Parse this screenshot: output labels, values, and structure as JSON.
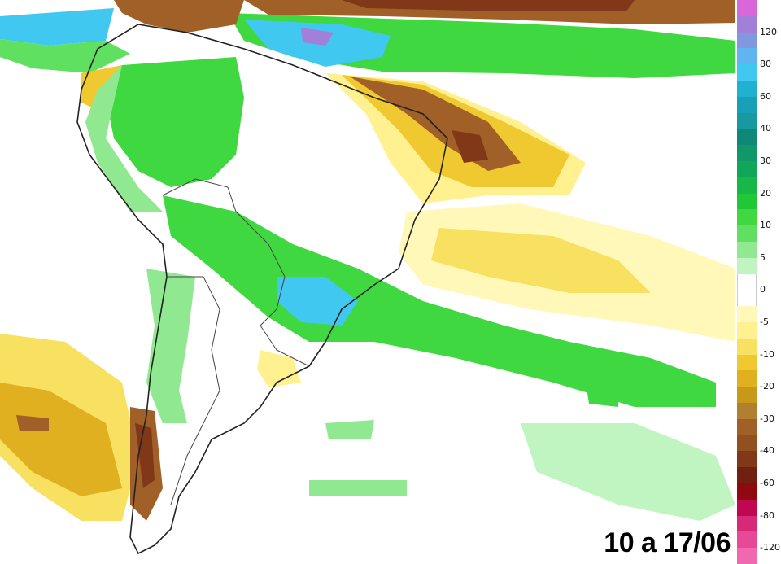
{
  "period_label": "10 a 17/06",
  "legend": {
    "items": [
      {
        "label": "",
        "color": "#d868d8"
      },
      {
        "label": "120",
        "color": "#a080d8"
      },
      {
        "label": "",
        "color": "#8098e0"
      },
      {
        "label": "80",
        "color": "#60b4f0"
      },
      {
        "label": "",
        "color": "#40c8f0"
      },
      {
        "label": "60",
        "color": "#20b0d0"
      },
      {
        "label": "",
        "color": "#18a0b8"
      },
      {
        "label": "40",
        "color": "#1898a0"
      },
      {
        "label": "",
        "color": "#108878"
      },
      {
        "label": "30",
        "color": "#109868"
      },
      {
        "label": "",
        "color": "#10a858"
      },
      {
        "label": "20",
        "color": "#18b848"
      },
      {
        "label": "",
        "color": "#20c838"
      },
      {
        "label": "10",
        "color": "#40d840"
      },
      {
        "label": "",
        "color": "#60e060"
      },
      {
        "label": "5",
        "color": "#90e890"
      },
      {
        "label": "",
        "color": "#c0f4c0"
      },
      {
        "label": "0",
        "color": "#ffffff"
      },
      {
        "label": "",
        "color": "#ffffff"
      },
      {
        "label": "-5",
        "color": "#fff8b8"
      },
      {
        "label": "",
        "color": "#fff090"
      },
      {
        "label": "-10",
        "color": "#f8e060"
      },
      {
        "label": "",
        "color": "#f0c830"
      },
      {
        "label": "-20",
        "color": "#e0b020"
      },
      {
        "label": "",
        "color": "#c89818"
      },
      {
        "label": "-30",
        "color": "#b08030"
      },
      {
        "label": "",
        "color": "#a06028"
      },
      {
        "label": "-40",
        "color": "#905020"
      },
      {
        "label": "",
        "color": "#803818"
      },
      {
        "label": "-60",
        "color": "#702010"
      },
      {
        "label": "",
        "color": "#900810"
      },
      {
        "label": "-80",
        "color": "#c00850"
      },
      {
        "label": "",
        "color": "#d82878"
      },
      {
        "label": "-120",
        "color": "#e84898"
      },
      {
        "label": "",
        "color": "#f068b0"
      }
    ]
  }
}
